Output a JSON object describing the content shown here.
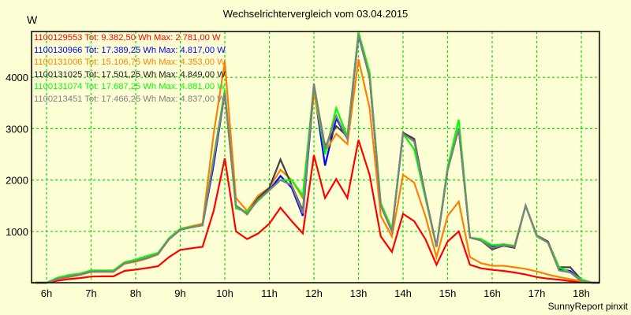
{
  "header": {
    "title": "Wechselrichtervergleich vom 03.04.2015",
    "unit": "W"
  },
  "footer": {
    "credit": "SunnyReport pinxit"
  },
  "chart_data": {
    "type": "line",
    "title": "Wechselrichtervergleich vom 03.04.2015",
    "xlabel": "",
    "ylabel": "W",
    "ylim": [
      0,
      4900
    ],
    "xlim": [
      5.66,
      18.4
    ],
    "grid": true,
    "legend_position": "top-left inside",
    "x_ticks": [
      "6h",
      "7h",
      "8h",
      "9h",
      "10h",
      "11h",
      "12h",
      "13h",
      "14h",
      "15h",
      "16h",
      "17h",
      "18h"
    ],
    "y_ticks": [
      1000,
      2000,
      3000,
      4000
    ],
    "x": [
      5.75,
      6.0,
      6.25,
      6.5,
      6.75,
      7.0,
      7.25,
      7.5,
      7.75,
      8.0,
      8.25,
      8.5,
      8.75,
      9.0,
      9.25,
      9.5,
      9.75,
      10.0,
      10.25,
      10.5,
      10.75,
      11.0,
      11.25,
      11.5,
      11.75,
      12.0,
      12.25,
      12.5,
      12.75,
      13.0,
      13.25,
      13.5,
      13.75,
      14.0,
      14.25,
      14.5,
      14.75,
      15.0,
      15.25,
      15.5,
      15.75,
      16.0,
      16.25,
      16.5,
      16.75,
      17.0,
      17.25,
      17.5,
      17.75,
      18.0,
      18.25,
      18.4
    ],
    "series": [
      {
        "name": "1100129553",
        "legend": "1100129553 Tot: 9.382,50 Wh Max: 2.781,00 W",
        "color": "#ff0000",
        "values": [
          0,
          0,
          40,
          70,
          90,
          120,
          125,
          125,
          230,
          255,
          285,
          320,
          500,
          640,
          670,
          700,
          1400,
          2420,
          1000,
          850,
          960,
          1150,
          1460,
          1200,
          960,
          2480,
          1650,
          2020,
          1650,
          2780,
          2100,
          900,
          600,
          1340,
          1200,
          850,
          350,
          800,
          1000,
          350,
          280,
          250,
          230,
          200,
          160,
          110,
          80,
          60,
          30,
          10,
          0,
          0
        ]
      },
      {
        "name": "1100130966",
        "legend": "1100130966 Tot: 17.389,25 Wh Max: 4.817,00 W",
        "color": "#0000ff",
        "values": [
          0,
          0,
          80,
          120,
          160,
          220,
          220,
          220,
          380,
          420,
          480,
          560,
          850,
          1030,
          1080,
          1120,
          2300,
          3700,
          1500,
          1350,
          1650,
          1800,
          2080,
          1850,
          1300,
          3780,
          2280,
          3200,
          2800,
          4817,
          4000,
          1500,
          1000,
          2920,
          2800,
          1700,
          700,
          2200,
          3000,
          880,
          830,
          700,
          750,
          700,
          1500,
          920,
          800,
          260,
          230,
          40,
          0,
          0
        ]
      },
      {
        "name": "1100131006",
        "legend": "1100131006 Tot: 15.106,75 Wh Max: 4.353,00 W",
        "color": "#ff8000",
        "values": [
          0,
          0,
          70,
          110,
          150,
          210,
          210,
          210,
          370,
          410,
          470,
          550,
          850,
          1050,
          1100,
          1150,
          2900,
          4300,
          1650,
          1400,
          1700,
          1850,
          2200,
          2000,
          1650,
          3700,
          2550,
          2900,
          2700,
          4353,
          3400,
          1300,
          900,
          2100,
          1950,
          1300,
          500,
          1300,
          1580,
          500,
          380,
          330,
          330,
          300,
          270,
          220,
          160,
          110,
          70,
          30,
          0,
          0
        ]
      },
      {
        "name": "1100131025",
        "legend": "1100131025 Tot: 17.501,25 Wh Max: 4.849,00 W",
        "color": "#404040",
        "values": [
          0,
          0,
          80,
          120,
          160,
          220,
          220,
          220,
          380,
          420,
          480,
          560,
          850,
          1030,
          1080,
          1120,
          2400,
          3700,
          1500,
          1350,
          1650,
          1850,
          2400,
          1900,
          1400,
          3850,
          2650,
          3050,
          2850,
          4849,
          4050,
          1500,
          1000,
          2920,
          2800,
          1700,
          700,
          2200,
          3000,
          880,
          820,
          650,
          720,
          680,
          1500,
          920,
          800,
          300,
          300,
          60,
          0,
          0
        ]
      },
      {
        "name": "1100131074",
        "legend": "1100131074 Tot: 17.687,25 Wh Max: 4.881,00 W",
        "color": "#00ff00",
        "values": [
          0,
          0,
          100,
          150,
          180,
          240,
          240,
          240,
          400,
          450,
          520,
          580,
          870,
          1050,
          1090,
          1120,
          2450,
          3750,
          1450,
          1380,
          1600,
          1800,
          2000,
          2000,
          1700,
          3850,
          2500,
          3400,
          2850,
          4881,
          4100,
          1550,
          1050,
          2900,
          2600,
          1650,
          700,
          2250,
          3180,
          880,
          850,
          730,
          750,
          720,
          1500,
          900,
          780,
          300,
          200,
          60,
          0,
          0
        ]
      },
      {
        "name": "1100213451",
        "legend": "1100213451 Tot: 17.466,25 Wh Max: 4.837,00 W",
        "color": "#808080",
        "values": [
          0,
          0,
          80,
          120,
          160,
          220,
          220,
          220,
          380,
          420,
          480,
          560,
          850,
          1030,
          1080,
          1120,
          2400,
          3700,
          1500,
          1330,
          1620,
          1800,
          2000,
          1900,
          1350,
          3880,
          2600,
          3250,
          2800,
          4837,
          4000,
          1500,
          1000,
          2900,
          2750,
          1700,
          700,
          2200,
          3000,
          880,
          820,
          680,
          730,
          700,
          1500,
          920,
          780,
          240,
          200,
          30,
          0,
          0
        ]
      }
    ]
  }
}
